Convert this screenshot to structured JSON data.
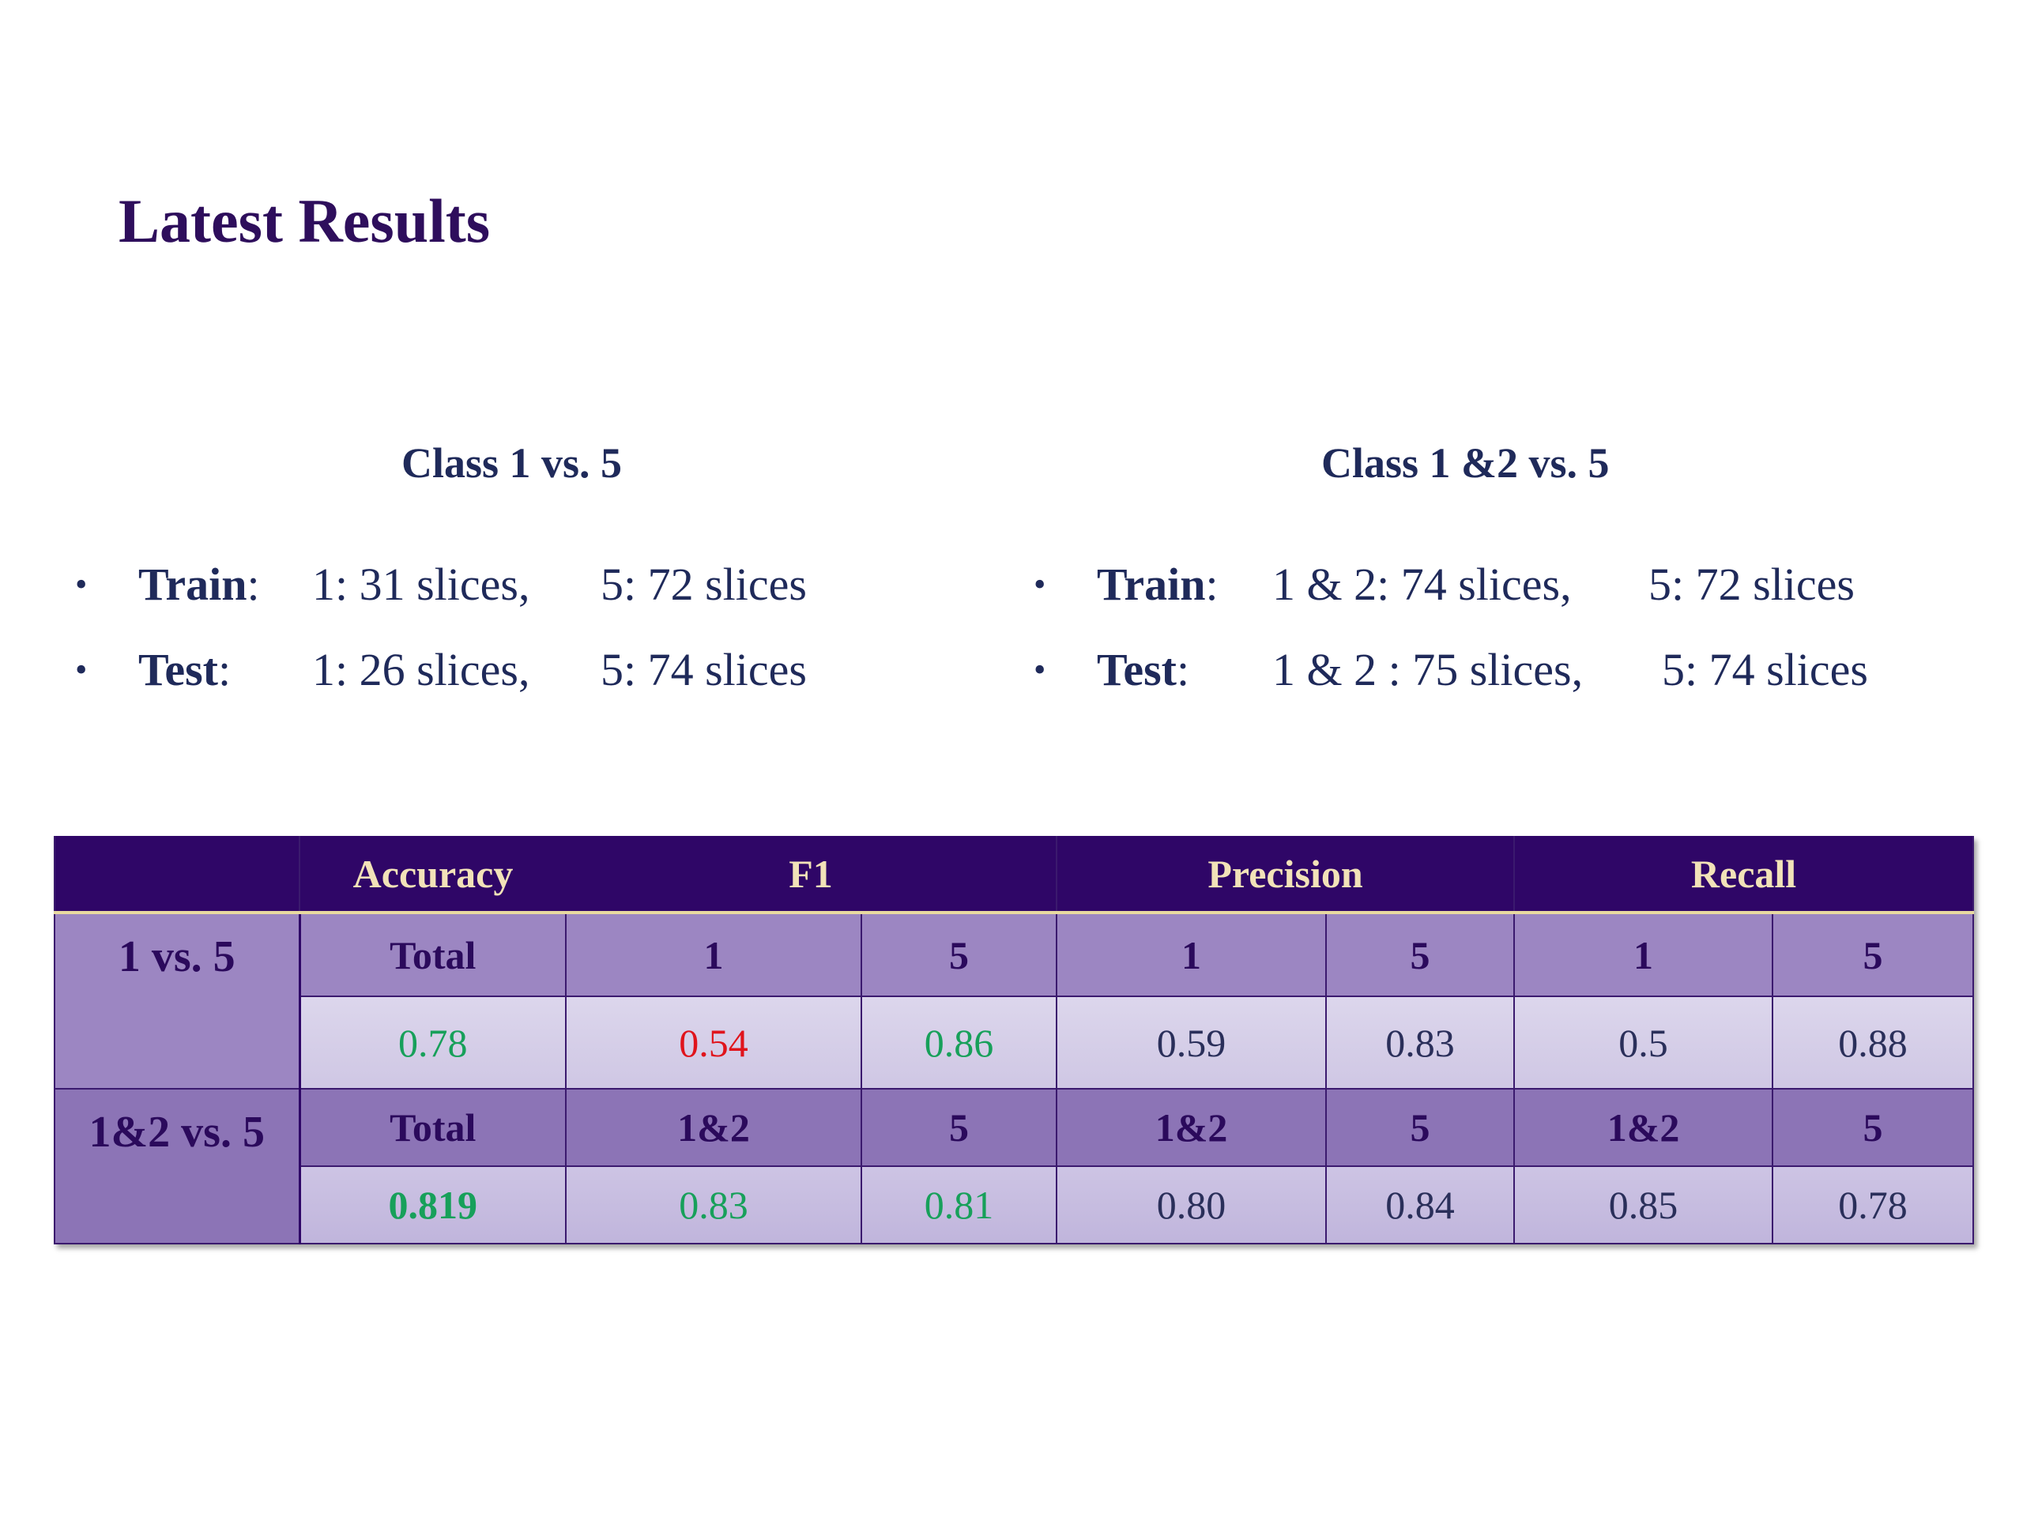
{
  "slide": {
    "title": "Latest Results"
  },
  "left": {
    "heading": "Class 1 vs. 5",
    "bullets": [
      {
        "label": "Train",
        "sep": ":",
        "v1": "1: 31 slices,",
        "v2": "5: 72 slices"
      },
      {
        "label": "Test",
        "sep": ":",
        "v1": "1: 26 slices,",
        "v2": "5: 74 slices"
      }
    ]
  },
  "right": {
    "heading": "Class 1 &2 vs. 5",
    "bullets": [
      {
        "label": "Train",
        "sep": ":",
        "v1": "1 & 2: 74 slices,",
        "v2": "5: 72 slices"
      },
      {
        "label": "Test",
        "sep": ":",
        "v1": "1 & 2 : 75 slices,",
        "v2": "5: 74 slices"
      }
    ]
  },
  "bullet_glyph": "•",
  "table": {
    "headers": [
      "",
      "Accuracy",
      "F1",
      "Precision",
      "Recall"
    ],
    "rows": [
      {
        "label": "1 vs. 5",
        "sub": [
          "Total",
          "1",
          "5",
          "1",
          "5",
          "1",
          "5"
        ],
        "values": [
          "0.78",
          "0.54",
          "0.86",
          "0.59",
          "0.83",
          "0.5",
          "0.88"
        ]
      },
      {
        "label": "1&2 vs. 5",
        "sub": [
          "Total",
          "1&2",
          "5",
          "1&2",
          "5",
          "1&2",
          "5"
        ],
        "values": [
          "0.819",
          "0.83",
          "0.81",
          "0.80",
          "0.84",
          "0.85",
          "0.78"
        ]
      }
    ]
  },
  "colors": {
    "title": "#2e0e5c",
    "header_bg": "#2f0667",
    "header_text": "#f2e2b8",
    "good": "#17a05a",
    "bad": "#e0141c"
  }
}
